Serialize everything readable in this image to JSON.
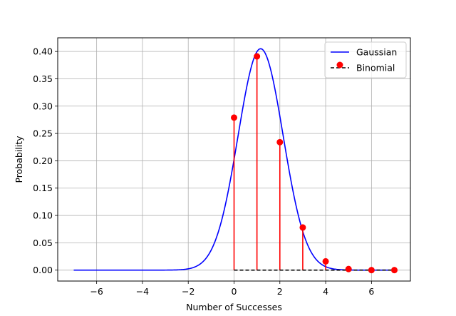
{
  "chart_data": {
    "type": "line",
    "title": "",
    "xlabel": "Number of Successes",
    "ylabel": "Probability",
    "xlim": [
      -7.7,
      7.7
    ],
    "ylim": [
      -0.02,
      0.425
    ],
    "x_ticks": [
      -6,
      -4,
      -2,
      0,
      2,
      4,
      6
    ],
    "x_tick_labels": [
      "−6",
      "−4",
      "−2",
      "0",
      "2",
      "4",
      "6"
    ],
    "y_ticks": [
      0.0,
      0.05,
      0.1,
      0.15,
      0.2,
      0.25,
      0.3,
      0.35,
      0.4
    ],
    "y_tick_labels": [
      "0.00",
      "0.05",
      "0.10",
      "0.15",
      "0.20",
      "0.25",
      "0.30",
      "0.35",
      "0.40"
    ],
    "grid": true,
    "legend_position": "top-right",
    "series": [
      {
        "name": "Gaussian",
        "kind": "line",
        "color": "#0000ff",
        "distribution": "normal",
        "mean": 1.16,
        "std": 0.985,
        "x_range": [
          -7,
          7
        ]
      },
      {
        "name": "Binomial",
        "kind": "stem",
        "marker_color": "#ff0000",
        "stem_color": "#ff0000",
        "baseline_color": "#000000",
        "baseline_style": "dashed",
        "x": [
          0,
          1,
          2,
          3,
          4,
          5,
          6,
          7
        ],
        "y": [
          0.279,
          0.391,
          0.234,
          0.078,
          0.016,
          0.002,
          0.0,
          0.0
        ]
      }
    ]
  }
}
